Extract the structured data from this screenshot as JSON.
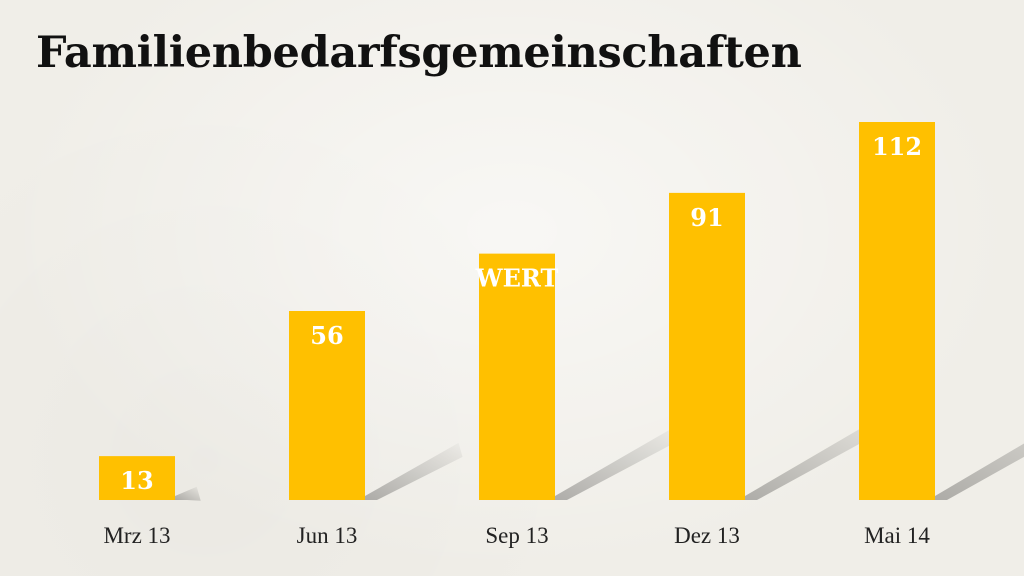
{
  "chart_data": {
    "type": "bar",
    "title": "Familienbedarfsgemeinschaften",
    "categories": [
      "Mrz 13",
      "Jun 13",
      "Sep 13",
      "Dez 13",
      "Mai 14"
    ],
    "values": [
      13,
      56,
      73,
      91,
      112
    ],
    "data_labels": [
      "13",
      "56",
      "WERT",
      "91",
      "112"
    ],
    "bar_color": "#ffc000",
    "label_color": "#ffffff",
    "ylim": [
      0,
      112
    ],
    "grid": false,
    "legend": "none"
  }
}
